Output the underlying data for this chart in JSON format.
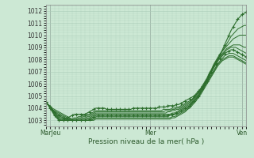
{
  "title": "",
  "xlabel": "Pression niveau de la mer( hPa )",
  "ylabel": "",
  "bg_color": "#cce8d4",
  "grid_color": "#aaccb8",
  "line_color": "#2d6e2d",
  "xlim": [
    0,
    93
  ],
  "ylim": [
    1002.5,
    1012.5
  ],
  "yticks": [
    1003,
    1004,
    1005,
    1006,
    1007,
    1008,
    1009,
    1010,
    1011,
    1012
  ],
  "xtick_labels": [
    "MarJeu",
    "Mer",
    "Ven"
  ],
  "xtick_positions": [
    2,
    48,
    90
  ],
  "lines": [
    {
      "y": [
        1004.5,
        1004.3,
        1004.0,
        1003.7,
        1003.4,
        1003.2,
        1003.0,
        1003.0,
        1003.0,
        1003.1,
        1003.2,
        1003.3,
        1003.4,
        1003.5,
        1003.5,
        1003.5,
        1003.5,
        1003.5,
        1003.5,
        1003.6,
        1003.7,
        1003.8,
        1003.9,
        1004.0,
        1004.0,
        1004.0,
        1004.0,
        1004.0,
        1003.9,
        1003.9,
        1003.9,
        1003.9,
        1003.9,
        1003.9,
        1003.9,
        1003.9,
        1003.9,
        1003.9,
        1003.9,
        1003.9,
        1004.0,
        1004.0,
        1004.0,
        1004.0,
        1004.0,
        1004.0,
        1004.0,
        1004.0,
        1004.0,
        1004.0,
        1004.0,
        1004.0,
        1004.1,
        1004.1,
        1004.1,
        1004.1,
        1004.2,
        1004.2,
        1004.2,
        1004.2,
        1004.3,
        1004.3,
        1004.4,
        1004.5,
        1004.6,
        1004.7,
        1004.8,
        1004.9,
        1005.0,
        1005.2,
        1005.4,
        1005.6,
        1005.8,
        1006.0,
        1006.3,
        1006.7,
        1007.0,
        1007.4,
        1007.7,
        1008.0,
        1008.4,
        1008.8,
        1009.2,
        1009.6,
        1010.0,
        1010.4,
        1010.7,
        1011.0,
        1011.3,
        1011.5,
        1011.7,
        1011.8,
        1011.9
      ],
      "marker": true
    },
    {
      "y": [
        1004.5,
        1004.3,
        1004.0,
        1003.8,
        1003.5,
        1003.3,
        1003.1,
        1003.0,
        1003.0,
        1003.0,
        1003.0,
        1003.1,
        1003.1,
        1003.2,
        1003.2,
        1003.3,
        1003.3,
        1003.4,
        1003.4,
        1003.5,
        1003.5,
        1003.6,
        1003.7,
        1003.8,
        1003.8,
        1003.8,
        1003.8,
        1003.8,
        1003.8,
        1003.8,
        1003.8,
        1003.8,
        1003.8,
        1003.8,
        1003.8,
        1003.8,
        1003.8,
        1003.8,
        1003.8,
        1003.8,
        1003.8,
        1003.8,
        1003.8,
        1003.8,
        1003.8,
        1003.8,
        1003.8,
        1003.8,
        1003.8,
        1003.8,
        1003.8,
        1003.8,
        1003.8,
        1003.8,
        1003.9,
        1003.9,
        1003.9,
        1003.9,
        1004.0,
        1004.0,
        1004.1,
        1004.1,
        1004.2,
        1004.3,
        1004.4,
        1004.5,
        1004.6,
        1004.7,
        1004.9,
        1005.1,
        1005.3,
        1005.5,
        1005.8,
        1006.1,
        1006.4,
        1006.8,
        1007.1,
        1007.5,
        1007.8,
        1008.1,
        1008.4,
        1008.7,
        1009.0,
        1009.3,
        1009.6,
        1009.9,
        1010.1,
        1010.3,
        1010.5,
        1010.6,
        1010.7,
        1010.8,
        1010.8
      ],
      "marker": false
    },
    {
      "y": [
        1004.5,
        1004.3,
        1004.0,
        1003.8,
        1003.5,
        1003.3,
        1003.1,
        1003.0,
        1003.0,
        1003.0,
        1003.0,
        1003.0,
        1003.0,
        1003.1,
        1003.1,
        1003.2,
        1003.2,
        1003.3,
        1003.3,
        1003.4,
        1003.4,
        1003.5,
        1003.6,
        1003.7,
        1003.7,
        1003.7,
        1003.7,
        1003.7,
        1003.7,
        1003.7,
        1003.7,
        1003.7,
        1003.7,
        1003.7,
        1003.7,
        1003.7,
        1003.7,
        1003.7,
        1003.7,
        1003.7,
        1003.7,
        1003.7,
        1003.7,
        1003.7,
        1003.7,
        1003.7,
        1003.7,
        1003.7,
        1003.7,
        1003.7,
        1003.7,
        1003.7,
        1003.7,
        1003.7,
        1003.7,
        1003.8,
        1003.8,
        1003.8,
        1003.9,
        1003.9,
        1004.0,
        1004.0,
        1004.1,
        1004.2,
        1004.3,
        1004.4,
        1004.5,
        1004.7,
        1004.9,
        1005.1,
        1005.3,
        1005.6,
        1005.9,
        1006.2,
        1006.5,
        1006.9,
        1007.2,
        1007.6,
        1007.9,
        1008.2,
        1008.5,
        1008.7,
        1008.9,
        1009.1,
        1009.3,
        1009.5,
        1009.7,
        1009.8,
        1009.9,
        1010.0,
        1010.0,
        1010.0,
        1010.0
      ],
      "marker": false
    },
    {
      "y": [
        1004.5,
        1004.3,
        1004.0,
        1003.8,
        1003.6,
        1003.4,
        1003.2,
        1003.1,
        1003.0,
        1003.0,
        1003.0,
        1003.0,
        1003.0,
        1003.0,
        1003.0,
        1003.1,
        1003.1,
        1003.2,
        1003.2,
        1003.3,
        1003.3,
        1003.4,
        1003.5,
        1003.6,
        1003.6,
        1003.6,
        1003.6,
        1003.6,
        1003.6,
        1003.6,
        1003.6,
        1003.6,
        1003.6,
        1003.6,
        1003.6,
        1003.6,
        1003.6,
        1003.6,
        1003.6,
        1003.6,
        1003.6,
        1003.6,
        1003.6,
        1003.6,
        1003.6,
        1003.6,
        1003.6,
        1003.6,
        1003.6,
        1003.6,
        1003.6,
        1003.6,
        1003.6,
        1003.6,
        1003.6,
        1003.6,
        1003.7,
        1003.7,
        1003.8,
        1003.8,
        1003.9,
        1003.9,
        1004.0,
        1004.1,
        1004.2,
        1004.3,
        1004.4,
        1004.6,
        1004.8,
        1005.0,
        1005.2,
        1005.5,
        1005.8,
        1006.1,
        1006.4,
        1006.8,
        1007.1,
        1007.5,
        1007.8,
        1008.1,
        1008.3,
        1008.5,
        1008.7,
        1008.9,
        1009.0,
        1009.1,
        1009.2,
        1009.2,
        1009.2,
        1009.2,
        1009.1,
        1009.0,
        1009.0
      ],
      "marker": false
    },
    {
      "y": [
        1004.5,
        1004.3,
        1004.1,
        1003.9,
        1003.7,
        1003.5,
        1003.3,
        1003.2,
        1003.1,
        1003.0,
        1003.0,
        1003.0,
        1003.0,
        1003.0,
        1003.0,
        1003.0,
        1003.0,
        1003.1,
        1003.1,
        1003.2,
        1003.2,
        1003.3,
        1003.4,
        1003.5,
        1003.5,
        1003.5,
        1003.5,
        1003.5,
        1003.5,
        1003.5,
        1003.5,
        1003.5,
        1003.5,
        1003.5,
        1003.5,
        1003.5,
        1003.5,
        1003.5,
        1003.5,
        1003.5,
        1003.5,
        1003.5,
        1003.5,
        1003.5,
        1003.5,
        1003.5,
        1003.5,
        1003.5,
        1003.5,
        1003.5,
        1003.5,
        1003.5,
        1003.5,
        1003.5,
        1003.5,
        1003.5,
        1003.5,
        1003.5,
        1003.6,
        1003.6,
        1003.7,
        1003.8,
        1003.9,
        1004.0,
        1004.1,
        1004.2,
        1004.3,
        1004.5,
        1004.7,
        1004.9,
        1005.1,
        1005.4,
        1005.7,
        1006.0,
        1006.3,
        1006.7,
        1007.0,
        1007.4,
        1007.7,
        1008.0,
        1008.2,
        1008.4,
        1008.6,
        1008.8,
        1008.9,
        1009.0,
        1009.0,
        1009.0,
        1008.9,
        1008.8,
        1008.7,
        1008.6,
        1008.5
      ],
      "marker": false
    },
    {
      "y": [
        1004.5,
        1004.3,
        1004.1,
        1003.9,
        1003.7,
        1003.5,
        1003.4,
        1003.3,
        1003.2,
        1003.1,
        1003.0,
        1003.0,
        1003.0,
        1003.0,
        1003.0,
        1003.0,
        1003.0,
        1003.0,
        1003.0,
        1003.1,
        1003.1,
        1003.2,
        1003.3,
        1003.4,
        1003.4,
        1003.4,
        1003.4,
        1003.4,
        1003.4,
        1003.4,
        1003.4,
        1003.4,
        1003.4,
        1003.4,
        1003.4,
        1003.4,
        1003.4,
        1003.4,
        1003.4,
        1003.4,
        1003.4,
        1003.4,
        1003.4,
        1003.4,
        1003.4,
        1003.4,
        1003.4,
        1003.4,
        1003.4,
        1003.4,
        1003.4,
        1003.4,
        1003.4,
        1003.4,
        1003.4,
        1003.4,
        1003.4,
        1003.5,
        1003.5,
        1003.5,
        1003.6,
        1003.7,
        1003.8,
        1003.9,
        1004.0,
        1004.1,
        1004.2,
        1004.4,
        1004.6,
        1004.8,
        1005.0,
        1005.3,
        1005.6,
        1005.9,
        1006.2,
        1006.6,
        1007.0,
        1007.3,
        1007.6,
        1007.9,
        1008.1,
        1008.3,
        1008.5,
        1008.6,
        1008.7,
        1008.8,
        1008.8,
        1008.7,
        1008.6,
        1008.5,
        1008.4,
        1008.3,
        1008.2
      ],
      "marker": true
    },
    {
      "y": [
        1004.5,
        1004.3,
        1004.1,
        1003.9,
        1003.7,
        1003.6,
        1003.5,
        1003.4,
        1003.3,
        1003.2,
        1003.1,
        1003.0,
        1003.0,
        1003.0,
        1003.0,
        1003.0,
        1003.0,
        1003.0,
        1003.0,
        1003.0,
        1003.0,
        1003.1,
        1003.2,
        1003.3,
        1003.3,
        1003.3,
        1003.3,
        1003.3,
        1003.3,
        1003.3,
        1003.3,
        1003.3,
        1003.3,
        1003.3,
        1003.3,
        1003.3,
        1003.3,
        1003.3,
        1003.3,
        1003.3,
        1003.3,
        1003.3,
        1003.3,
        1003.3,
        1003.3,
        1003.3,
        1003.3,
        1003.3,
        1003.3,
        1003.3,
        1003.3,
        1003.3,
        1003.3,
        1003.3,
        1003.3,
        1003.3,
        1003.3,
        1003.4,
        1003.4,
        1003.5,
        1003.5,
        1003.6,
        1003.7,
        1003.8,
        1003.9,
        1004.0,
        1004.2,
        1004.4,
        1004.6,
        1004.8,
        1005.0,
        1005.3,
        1005.6,
        1005.9,
        1006.2,
        1006.5,
        1006.8,
        1007.1,
        1007.4,
        1007.7,
        1007.9,
        1008.1,
        1008.3,
        1008.4,
        1008.5,
        1008.5,
        1008.5,
        1008.4,
        1008.3,
        1008.2,
        1008.1,
        1008.0,
        1007.9
      ],
      "marker": false
    },
    {
      "y": [
        1004.5,
        1004.3,
        1004.1,
        1003.9,
        1003.8,
        1003.7,
        1003.6,
        1003.5,
        1003.4,
        1003.3,
        1003.2,
        1003.1,
        1003.0,
        1003.0,
        1003.0,
        1003.0,
        1003.0,
        1003.0,
        1003.0,
        1003.0,
        1003.0,
        1003.0,
        1003.1,
        1003.2,
        1003.2,
        1003.2,
        1003.2,
        1003.2,
        1003.2,
        1003.2,
        1003.2,
        1003.2,
        1003.2,
        1003.2,
        1003.2,
        1003.2,
        1003.2,
        1003.2,
        1003.2,
        1003.2,
        1003.2,
        1003.2,
        1003.2,
        1003.2,
        1003.2,
        1003.2,
        1003.2,
        1003.2,
        1003.2,
        1003.2,
        1003.2,
        1003.2,
        1003.2,
        1003.2,
        1003.2,
        1003.2,
        1003.2,
        1003.2,
        1003.3,
        1003.3,
        1003.4,
        1003.5,
        1003.6,
        1003.7,
        1003.8,
        1003.9,
        1004.1,
        1004.3,
        1004.5,
        1004.7,
        1004.9,
        1005.2,
        1005.5,
        1005.8,
        1006.1,
        1006.4,
        1006.7,
        1007.0,
        1007.3,
        1007.6,
        1007.8,
        1008.0,
        1008.1,
        1008.2,
        1008.3,
        1008.3,
        1008.3,
        1008.2,
        1008.1,
        1008.0,
        1007.9,
        1007.8,
        1007.7
      ],
      "marker": false
    },
    {
      "y": [
        1004.5,
        1004.3,
        1004.2,
        1004.0,
        1003.9,
        1003.8,
        1003.7,
        1003.6,
        1003.5,
        1003.4,
        1003.3,
        1003.2,
        1003.1,
        1003.0,
        1003.0,
        1003.0,
        1003.0,
        1003.0,
        1003.0,
        1003.0,
        1003.0,
        1003.0,
        1003.0,
        1003.1,
        1003.1,
        1003.1,
        1003.1,
        1003.1,
        1003.1,
        1003.1,
        1003.1,
        1003.1,
        1003.1,
        1003.1,
        1003.1,
        1003.1,
        1003.1,
        1003.1,
        1003.1,
        1003.1,
        1003.1,
        1003.1,
        1003.1,
        1003.1,
        1003.1,
        1003.1,
        1003.1,
        1003.1,
        1003.1,
        1003.1,
        1003.1,
        1003.1,
        1003.1,
        1003.1,
        1003.1,
        1003.1,
        1003.1,
        1003.1,
        1003.2,
        1003.2,
        1003.3,
        1003.4,
        1003.5,
        1003.6,
        1003.7,
        1003.9,
        1004.0,
        1004.2,
        1004.4,
        1004.6,
        1004.9,
        1005.1,
        1005.4,
        1005.7,
        1006.0,
        1006.3,
        1006.6,
        1006.9,
        1007.2,
        1007.5,
        1007.7,
        1007.9,
        1008.0,
        1008.1,
        1008.2,
        1008.2,
        1008.2,
        1008.1,
        1008.0,
        1007.9,
        1007.8,
        1007.7,
        1007.6
      ],
      "marker": false
    }
  ]
}
